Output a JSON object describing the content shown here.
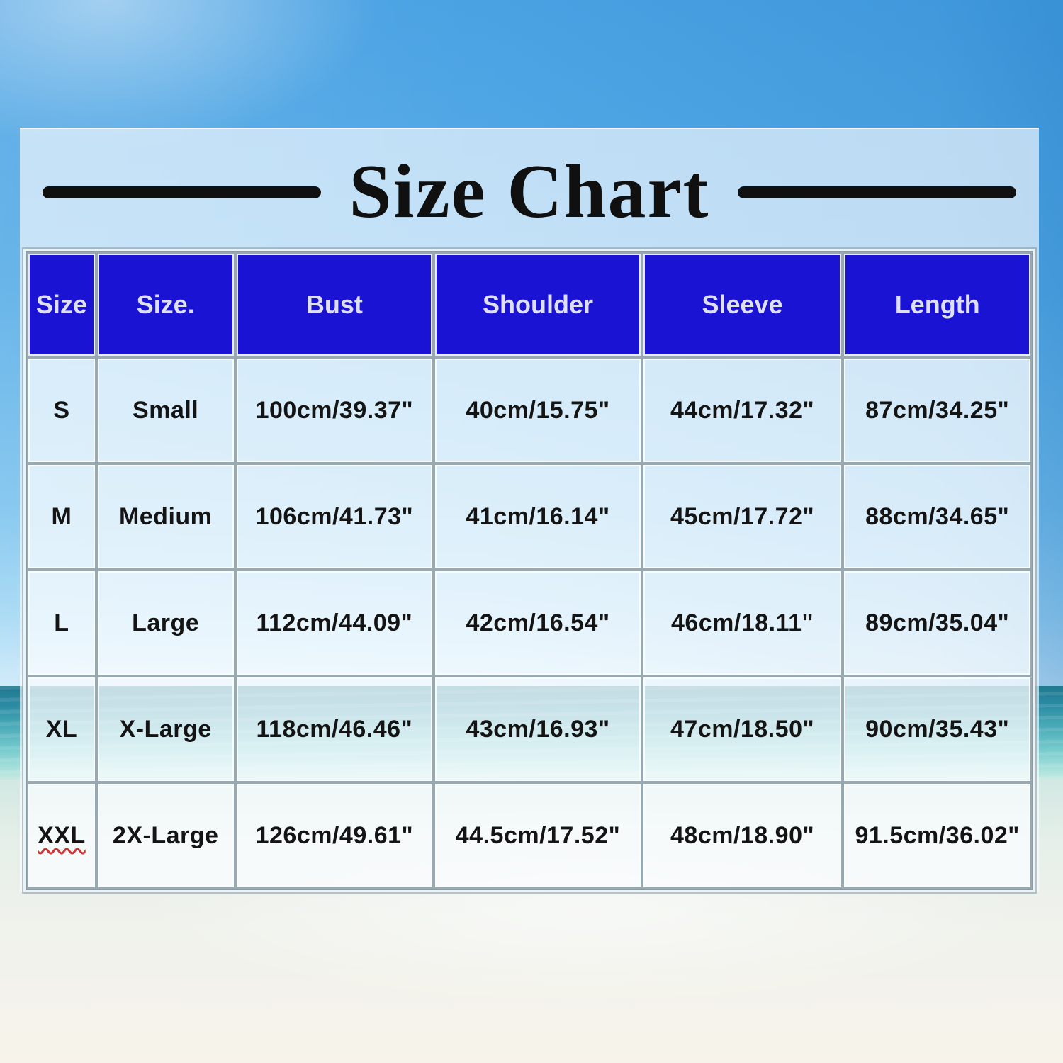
{
  "page": {
    "title": "Size Chart"
  },
  "colors": {
    "header_bg": "#1b13d4",
    "header_text": "#dfdff2",
    "cell_text": "#141414",
    "title_color": "#101010",
    "misspell_underline": "#cc3333",
    "sky_blue": "#4aa2e3",
    "ocean_teal": "#2b8aa3",
    "sand_white": "#f7f3eb"
  },
  "table": {
    "headers": [
      "Size",
      "Size.",
      "Bust",
      "Shoulder",
      "Sleeve",
      "Length"
    ],
    "rows": [
      [
        "S",
        "Small",
        "100cm/39.37\"",
        "40cm/15.75\"",
        "44cm/17.32\"",
        "87cm/34.25\""
      ],
      [
        "M",
        "Medium",
        "106cm/41.73\"",
        "41cm/16.14\"",
        "45cm/17.72\"",
        "88cm/34.65\""
      ],
      [
        "L",
        "Large",
        "112cm/44.09\"",
        "42cm/16.54\"",
        "46cm/18.11\"",
        "89cm/35.04\""
      ],
      [
        "XL",
        "X-Large",
        "118cm/46.46\"",
        "43cm/16.93\"",
        "47cm/18.50\"",
        "90cm/35.43\""
      ],
      [
        "XXL",
        "2X-Large",
        "126cm/49.61\"",
        "44.5cm/17.52\"",
        "48cm/18.90\"",
        "91.5cm/36.02\""
      ]
    ],
    "squiggle_cell": {
      "row": 4,
      "col": 0
    }
  },
  "chart_data": {
    "type": "table",
    "title": "Size Chart",
    "columns": [
      "Size",
      "Size.",
      "Bust",
      "Shoulder",
      "Sleeve",
      "Length"
    ],
    "rows": [
      [
        "S",
        "Small",
        "100cm/39.37\"",
        "40cm/15.75\"",
        "44cm/17.32\"",
        "87cm/34.25\""
      ],
      [
        "M",
        "Medium",
        "106cm/41.73\"",
        "41cm/16.14\"",
        "45cm/17.72\"",
        "88cm/34.65\""
      ],
      [
        "L",
        "Large",
        "112cm/44.09\"",
        "42cm/16.54\"",
        "46cm/18.11\"",
        "89cm/35.04\""
      ],
      [
        "XL",
        "X-Large",
        "118cm/46.46\"",
        "43cm/16.93\"",
        "47cm/18.50\"",
        "90cm/35.43\""
      ],
      [
        "XXL",
        "2X-Large",
        "126cm/49.61\"",
        "44.5cm/17.52\"",
        "48cm/18.90\"",
        "91.5cm/36.02\""
      ]
    ],
    "layout": {
      "header_row": true,
      "grid": true,
      "legend": "none"
    }
  }
}
